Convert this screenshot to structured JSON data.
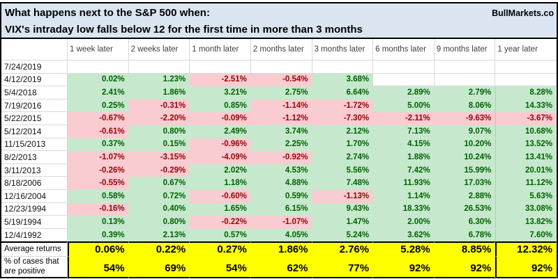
{
  "header": {
    "title_line1": "What happens next to the S&P 500 when:",
    "title_line2": "VIX's intraday low falls below 12 for the first time in more than 3 months",
    "brand": "BullMarkets.co"
  },
  "colors": {
    "title_bg": "#dbe5f1",
    "positive_bg": "#c6e9ce",
    "positive_text": "#006100",
    "negative_bg": "#f8ccd0",
    "negative_text": "#9c0006",
    "summary_bg": "#ffff00",
    "gridline": "#d9d9d9",
    "border": "#000000"
  },
  "chart_data": {
    "type": "table",
    "title": "What happens next to the S&P 500 when: VIX's intraday low falls below 12 for the first time in more than 3 months",
    "columns": [
      "1 week later",
      "2 weeks later",
      "1 month later",
      "2 months later",
      "3 months later",
      "6 months later",
      "9 months later",
      "1 year later"
    ],
    "rows": [
      {
        "date": "7/24/2019",
        "values": [
          "",
          "",
          "",
          "",
          "",
          "",
          "",
          ""
        ]
      },
      {
        "date": "4/12/2019",
        "values": [
          "0.02%",
          "1.23%",
          "-2.51%",
          "-0.54%",
          "3.68%",
          "",
          "",
          ""
        ]
      },
      {
        "date": "5/4/2018",
        "values": [
          "2.41%",
          "1.86%",
          "3.21%",
          "2.75%",
          "6.64%",
          "2.89%",
          "2.79%",
          "8.28%"
        ]
      },
      {
        "date": "7/19/2016",
        "values": [
          "0.25%",
          "-0.31%",
          "0.85%",
          "-1.14%",
          "-1.72%",
          "5.00%",
          "8.06%",
          "14.33%"
        ]
      },
      {
        "date": "5/22/2015",
        "values": [
          "-0.67%",
          "-2.20%",
          "-0.09%",
          "-1.12%",
          "-7.30%",
          "-2.11%",
          "-9.63%",
          "-3.67%"
        ]
      },
      {
        "date": "5/12/2014",
        "values": [
          "-0.61%",
          "0.80%",
          "2.49%",
          "3.74%",
          "2.12%",
          "7.13%",
          "9.07%",
          "10.68%"
        ]
      },
      {
        "date": "11/15/2013",
        "values": [
          "0.37%",
          "0.15%",
          "-0.96%",
          "2.25%",
          "1.70%",
          "4.15%",
          "10.20%",
          "13.52%"
        ]
      },
      {
        "date": "8/2/2013",
        "values": [
          "-1.07%",
          "-3.15%",
          "-4.09%",
          "-0.92%",
          "2.74%",
          "1.88%",
          "10.24%",
          "13.41%"
        ]
      },
      {
        "date": "3/11/2013",
        "values": [
          "-0.26%",
          "-0.29%",
          "2.02%",
          "4.53%",
          "5.56%",
          "7.42%",
          "15.99%",
          "20.01%"
        ]
      },
      {
        "date": "8/18/2006",
        "values": [
          "-0.55%",
          "0.67%",
          "1.18%",
          "4.88%",
          "7.48%",
          "11.93%",
          "17.03%",
          "11.12%"
        ]
      },
      {
        "date": "12/16/2004",
        "values": [
          "0.58%",
          "0.72%",
          "-0.60%",
          "0.59%",
          "-1.13%",
          "1.14%",
          "2.88%",
          "5.63%"
        ]
      },
      {
        "date": "12/23/1994",
        "values": [
          "-0.16%",
          "0.40%",
          "1.65%",
          "6.15%",
          "9.43%",
          "18.33%",
          "26.53%",
          "33.08%"
        ]
      },
      {
        "date": "5/19/1994",
        "values": [
          "0.13%",
          "0.80%",
          "-0.22%",
          "-1.07%",
          "1.47%",
          "2.00%",
          "6.30%",
          "13.82%"
        ]
      },
      {
        "date": "12/4/1992",
        "values": [
          "0.39%",
          "2.13%",
          "0.57%",
          "4.05%",
          "5.24%",
          "3.62%",
          "6.78%",
          "7.60%"
        ]
      }
    ],
    "summary_rows": [
      {
        "label": "Average returns",
        "values": [
          "0.06%",
          "0.22%",
          "0.27%",
          "1.86%",
          "2.76%",
          "5.28%",
          "8.85%",
          "12.32%"
        ]
      },
      {
        "label": "% of cases that are positive",
        "values": [
          "54%",
          "69%",
          "54%",
          "62%",
          "77%",
          "92%",
          "92%",
          "92%"
        ]
      }
    ],
    "color_rule": "negative values shaded light red with dark red text, positive values shaded light green with dark green text, blank cells white, summary rows yellow"
  }
}
